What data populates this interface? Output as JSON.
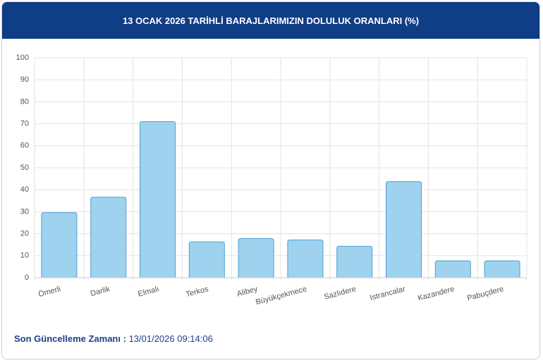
{
  "header": {
    "title": "13 OCAK 2026 TARİHLİ BARAJLARIMIZIN DOLULUK ORANLARI (%)"
  },
  "chart_data": {
    "type": "bar",
    "categories": [
      "Ömerli",
      "Darlik",
      "Elmalı",
      "Terkos",
      "Alibey",
      "Büyükçekmece",
      "Sazlıdere",
      "Istrancalar",
      "Kazandere",
      "Pabuçdere"
    ],
    "values": [
      29.6,
      36.6,
      71,
      16.3,
      17.8,
      17.2,
      14.3,
      43.7,
      7.7,
      7.7
    ],
    "color": "#9fd2ee",
    "edge_color": "#4d9fd2",
    "ylim": [
      0,
      100
    ],
    "yticks": [
      0,
      10,
      20,
      30,
      40,
      50,
      60,
      70,
      80,
      90,
      100
    ],
    "grid": true
  },
  "footer": {
    "label": "Son Güncelleme Zamanı :",
    "value": "13/01/2026 09:14:06"
  }
}
